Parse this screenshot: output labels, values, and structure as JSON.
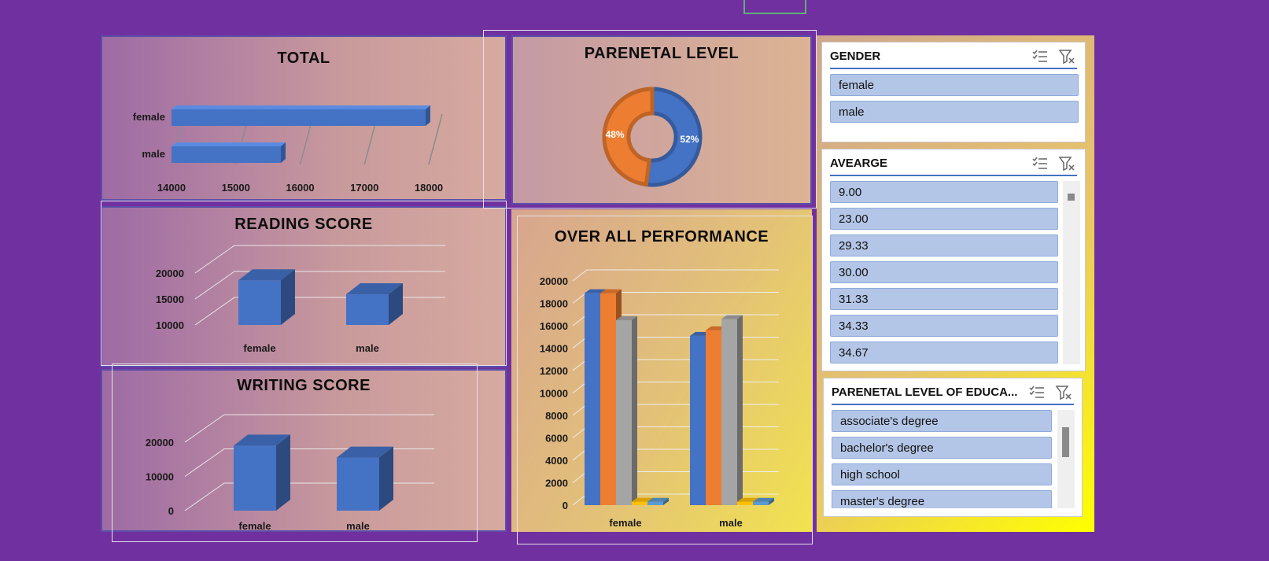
{
  "colors": {
    "background": "#7030a0",
    "blue": "#4472c4",
    "orange": "#ed7d31",
    "gray": "#a5a5a5",
    "yellow": "#ffc000",
    "lightblue": "#5b9bd5"
  },
  "icons": {
    "multiselect": "multi-select-icon",
    "clearfilter": "clear-filter-icon"
  },
  "chart_data": [
    {
      "type": "bar",
      "orientation": "horizontal",
      "title": "TOTAL",
      "categories": [
        "female",
        "male"
      ],
      "values": [
        17950,
        15700
      ],
      "xlim": [
        14000,
        18000
      ],
      "xticks": [
        "14000",
        "15000",
        "16000",
        "17000",
        "18000"
      ]
    },
    {
      "type": "pie",
      "donut": true,
      "title": "PARENETAL LEVEL",
      "slices": [
        {
          "value": 52,
          "label": "52%",
          "color": "#4472c4"
        },
        {
          "value": 48,
          "label": "48%",
          "color": "#ed7d31"
        }
      ]
    },
    {
      "type": "bar",
      "title": "READING SCORE",
      "categories": [
        "female",
        "male"
      ],
      "values": [
        18600,
        15900
      ],
      "ylim": [
        10000,
        20000
      ],
      "yticks": [
        "20000",
        "15000",
        "10000"
      ]
    },
    {
      "type": "bar",
      "title": "WRITING SCORE",
      "categories": [
        "female",
        "male"
      ],
      "values": [
        19000,
        15500
      ],
      "ylim": [
        0,
        20000
      ],
      "yticks": [
        "20000",
        "10000",
        "0"
      ]
    },
    {
      "type": "bar",
      "title": "OVER  ALL PERFORMANCE",
      "categories": [
        "female",
        "male"
      ],
      "ylim": [
        0,
        20000
      ],
      "yticks": [
        "20000",
        "18000",
        "16000",
        "14000",
        "12000",
        "10000",
        "8000",
        "6000",
        "4000",
        "2000",
        "0"
      ],
      "series": [
        {
          "values": [
            18900,
            15100
          ],
          "color": "#4472c4"
        },
        {
          "values": [
            18900,
            15600
          ],
          "color": "#ed7d31"
        },
        {
          "values": [
            16500,
            16600
          ],
          "color": "#a5a5a5"
        },
        {
          "values": [
            300,
            300
          ],
          "color": "#ffc000"
        },
        {
          "values": [
            300,
            300
          ],
          "color": "#5b9bd5"
        }
      ]
    }
  ],
  "slicers": {
    "gender": {
      "title": "GENDER",
      "items": [
        "female",
        "male"
      ]
    },
    "average": {
      "title": "AVEARGE",
      "items": [
        "9.00",
        "23.00",
        "29.33",
        "30.00",
        "31.33",
        "34.33",
        "34.67"
      ]
    },
    "parental": {
      "title": "PARENETAL LEVEL OF EDUCA...",
      "items": [
        "associate's degree",
        "bachelor's degree",
        "high school",
        "master's degree"
      ]
    }
  }
}
